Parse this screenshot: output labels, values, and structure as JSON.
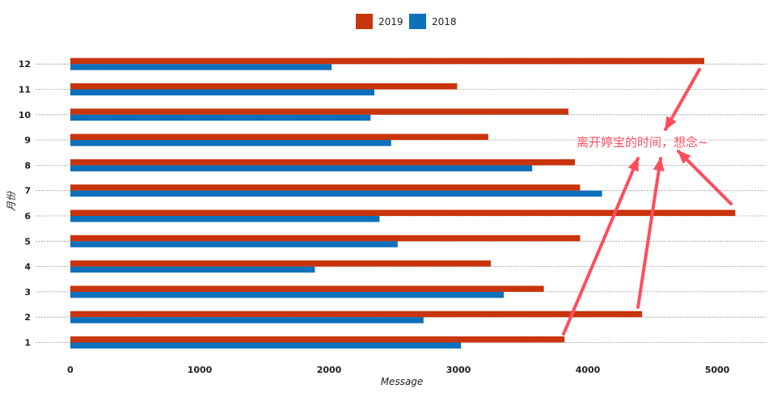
{
  "chart_data": {
    "type": "bar",
    "orientation": "horizontal",
    "categories": [
      "1",
      "2",
      "3",
      "4",
      "5",
      "6",
      "7",
      "8",
      "9",
      "10",
      "11",
      "12"
    ],
    "series": [
      {
        "name": "2019",
        "color": "#c8340c",
        "values": [
          3820,
          4420,
          3660,
          3250,
          3940,
          5140,
          3940,
          3900,
          3230,
          3850,
          2990,
          4900
        ]
      },
      {
        "name": "2018",
        "color": "#0e6fba",
        "values": [
          3020,
          2730,
          3350,
          1890,
          2530,
          2390,
          4110,
          3570,
          2480,
          2320,
          2350,
          2020
        ]
      }
    ],
    "xlabel": "Message",
    "ylabel": "月份",
    "xlim": [
      0,
      5300
    ],
    "xticks": [
      0,
      1000,
      2000,
      3000,
      4000,
      5000
    ],
    "grid": true,
    "legend_position": "top-center",
    "annotation": {
      "text": "离开婷宝的时间，想念~",
      "arrows_point_to_months": [
        "12",
        "1",
        "2",
        "6"
      ],
      "color": "#ff4d5e"
    }
  }
}
